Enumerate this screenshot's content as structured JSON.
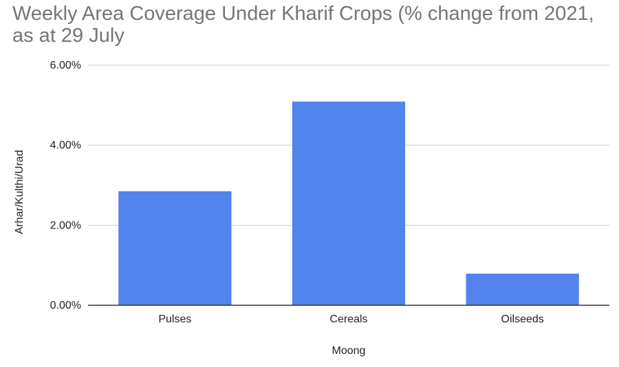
{
  "chart_data": {
    "type": "bar",
    "title": "Weekly Area Coverage Under Kharif Crops (% change from 2021, as at 29 July",
    "xlabel": "Moong",
    "ylabel": "Arhar/Kulthi/Urad",
    "categories": [
      "Pulses",
      "Cereals",
      "Oilseeds"
    ],
    "values": [
      2.85,
      5.09,
      0.79
    ],
    "ylim": [
      0,
      6
    ],
    "yticks": [
      {
        "value": 0,
        "label": "0.00%"
      },
      {
        "value": 2,
        "label": "2.00%"
      },
      {
        "value": 4,
        "label": "4.00%"
      },
      {
        "value": 6,
        "label": "6.00%"
      }
    ],
    "bar_color": "#5383ec",
    "grid": true,
    "legend": "none"
  }
}
